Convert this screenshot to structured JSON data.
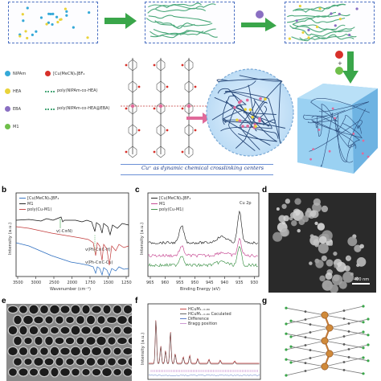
{
  "legend": {
    "items": [
      {
        "label": "NIPAm",
        "color": "#35a9d8"
      },
      {
        "label": "[Cu(MeCN)₄]BF₄",
        "color": "#d7302a"
      },
      {
        "label": "HEA",
        "color": "#e9d33a"
      },
      {
        "label": "poly(NIPAm-co-HEA)",
        "color": "#4aa87a"
      },
      {
        "label": "EBA",
        "color": "#8a6fc2"
      },
      {
        "label": "poly(NIPAm-co-HEA@EBA)",
        "color": "#4aa87a"
      },
      {
        "label": "M1",
        "color": "#6fbf4a"
      }
    ]
  },
  "center_caption": "Cu⁺ as dynamic chemical crosslinking centers",
  "panels": {
    "b": {
      "letter": "b",
      "series": [
        "[Cu(MeCN)₄]BF₄",
        "M1",
        "poly(Cu-M1)"
      ],
      "series_colors": [
        "#2a6cbf",
        "#111111",
        "#c23a3a"
      ],
      "annotations": [
        "v(-C≡N)",
        "v(Ph-C≡C-H)",
        "v(Ph-C≡C-Cu)"
      ],
      "xlabel": "Wavenumber (cm⁻¹)",
      "ylabel": "Intensity (a.u.)",
      "xticks": [
        "3500",
        "3000",
        "2500",
        "2000",
        "1750",
        "1500",
        "1250"
      ]
    },
    "c": {
      "letter": "c",
      "series": [
        "[Cu(MeCN)₄]BF₄",
        "M1",
        "poly(Cu-M1)"
      ],
      "series_colors": [
        "#111111",
        "#c23a8a",
        "#2f8a3a"
      ],
      "tag": "Cu 2p",
      "xlabel": "Binding Energy (eV)",
      "ylabel": "Intensity (a.u.)",
      "xticks": [
        "965",
        "960",
        "955",
        "950",
        "945",
        "940",
        "935",
        "930"
      ]
    },
    "d": {
      "letter": "d",
      "scale": "400 nm"
    },
    "e": {
      "letter": "e"
    },
    "f": {
      "letter": "f",
      "legend": [
        "HCuM₁₋₀.₈₀",
        "HCuM₁₋₀.₈₀ Caculated",
        "Difference",
        "Bragg position"
      ],
      "legend_colors": [
        "#c23a3a",
        "#555555",
        "#4a6fc2",
        "#c98fd0"
      ],
      "ylabel": "Intensity (a.u.)"
    },
    "g": {
      "letter": "g"
    }
  }
}
